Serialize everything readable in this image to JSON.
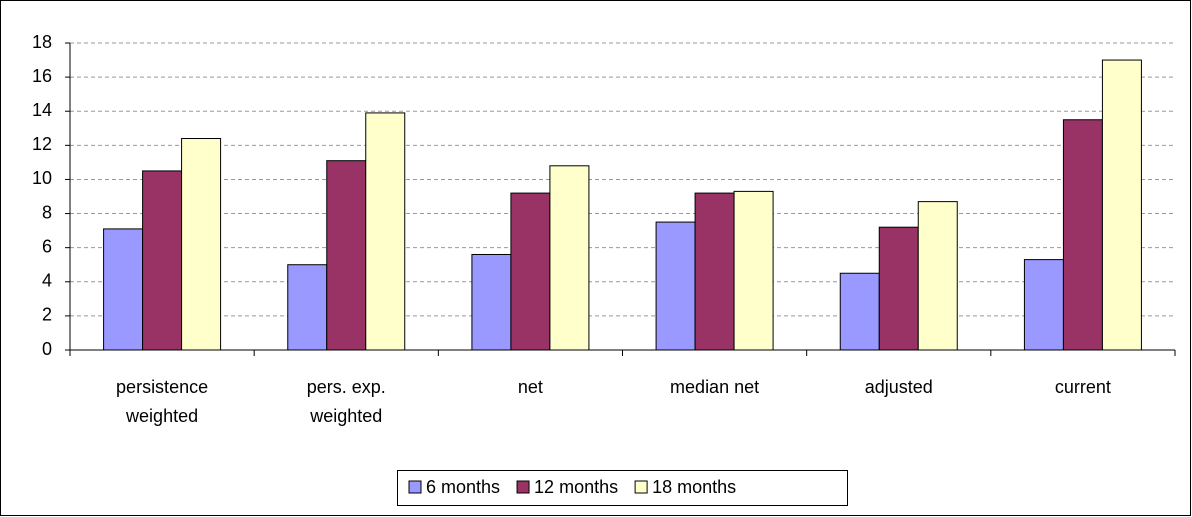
{
  "chart_data": {
    "type": "bar",
    "categories": [
      "persistence weighted",
      "pers. exp. weighted",
      "net",
      "median net",
      "adjusted",
      "current"
    ],
    "series": [
      {
        "name": "6 months",
        "color": "#9999ff",
        "values": [
          7.1,
          5.0,
          5.6,
          7.5,
          4.5,
          5.3
        ]
      },
      {
        "name": "12 months",
        "color": "#993366",
        "values": [
          10.5,
          11.1,
          9.2,
          9.2,
          7.2,
          13.5
        ]
      },
      {
        "name": "18 months",
        "color": "#ffffcc",
        "values": [
          12.4,
          13.9,
          10.8,
          9.3,
          8.7,
          17.0
        ]
      }
    ],
    "ylim": [
      0,
      18
    ],
    "yticks": [
      0,
      2,
      4,
      6,
      8,
      10,
      12,
      14,
      16,
      18
    ],
    "grid": true,
    "legend": "bottom"
  }
}
